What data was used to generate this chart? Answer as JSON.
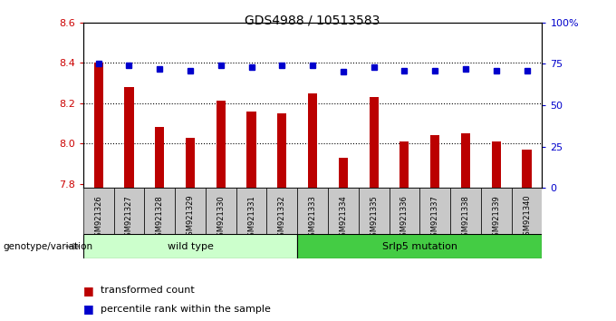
{
  "title": "GDS4988 / 10513583",
  "samples": [
    "GSM921326",
    "GSM921327",
    "GSM921328",
    "GSM921329",
    "GSM921330",
    "GSM921331",
    "GSM921332",
    "GSM921333",
    "GSM921334",
    "GSM921335",
    "GSM921336",
    "GSM921337",
    "GSM921338",
    "GSM921339",
    "GSM921340"
  ],
  "transformed_counts": [
    8.4,
    8.28,
    8.08,
    8.03,
    8.21,
    8.16,
    8.15,
    8.25,
    7.93,
    8.23,
    8.01,
    8.04,
    8.05,
    8.01,
    7.97
  ],
  "percentile_ranks": [
    75,
    74,
    72,
    71,
    74,
    73,
    74,
    74,
    70,
    73,
    71,
    71,
    72,
    71,
    71
  ],
  "ylim_left": [
    7.78,
    8.6
  ],
  "ylim_right": [
    0,
    100
  ],
  "yticks_left": [
    7.8,
    8.0,
    8.2,
    8.4,
    8.6
  ],
  "yticks_right": [
    0,
    25,
    50,
    75,
    100
  ],
  "ytick_labels_right": [
    "0",
    "25",
    "50",
    "75",
    "100%"
  ],
  "hlines": [
    8.0,
    8.2,
    8.4
  ],
  "bar_color": "#bb0000",
  "dot_color": "#0000cc",
  "background_color": "#ffffff",
  "plot_bg_color": "#ffffff",
  "xtick_bg_color": "#c8c8c8",
  "group1_label": "wild type",
  "group2_label": "Srlp5 mutation",
  "group1_count": 7,
  "group2_count": 8,
  "group_color1": "#ccffcc",
  "group_color2": "#44cc44",
  "genotype_label": "genotype/variation",
  "legend1": "transformed count",
  "legend2": "percentile rank within the sample",
  "tick_color_left": "#cc0000",
  "tick_color_right": "#0000cc",
  "title_fontsize": 10,
  "axis_fontsize": 8,
  "xtick_fontsize": 6
}
